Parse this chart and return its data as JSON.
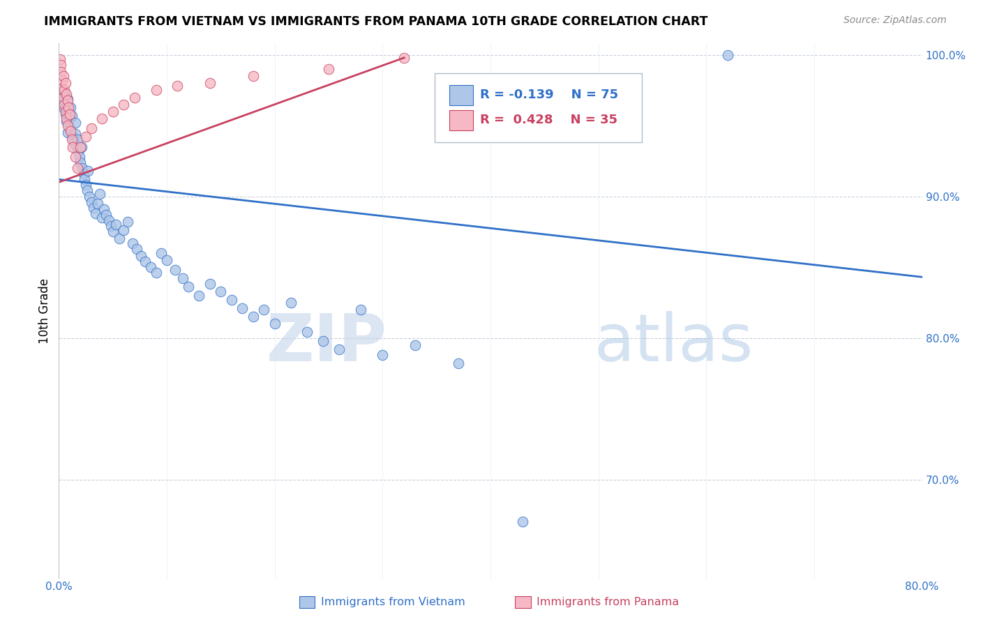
{
  "title": "IMMIGRANTS FROM VIETNAM VS IMMIGRANTS FROM PANAMA 10TH GRADE CORRELATION CHART",
  "source": "Source: ZipAtlas.com",
  "ylabel": "10th Grade",
  "xlim": [
    0.0,
    0.8
  ],
  "ylim": [
    0.63,
    1.008
  ],
  "xticks": [
    0.0,
    0.1,
    0.2,
    0.3,
    0.4,
    0.5,
    0.6,
    0.7,
    0.8
  ],
  "xticklabels": [
    "0.0%",
    "",
    "",
    "",
    "",
    "",
    "",
    "",
    "80.0%"
  ],
  "yticks": [
    0.7,
    0.8,
    0.9,
    1.0
  ],
  "yticklabels": [
    "70.0%",
    "80.0%",
    "90.0%",
    "100.0%"
  ],
  "legend_R_blue": "-0.139",
  "legend_N_blue": "75",
  "legend_R_pink": "0.428",
  "legend_N_pink": "35",
  "blue_color": "#aec6e8",
  "pink_color": "#f5b8c4",
  "blue_line_color": "#3070c8",
  "pink_line_color": "#c84060",
  "watermark_zip": "ZIP",
  "watermark_atlas": "atlas",
  "blue_trend_x": [
    0.0,
    0.8
  ],
  "blue_trend_y": [
    0.912,
    0.843
  ],
  "pink_trend_x": [
    0.0,
    0.32
  ],
  "pink_trend_y": [
    0.91,
    0.998
  ],
  "vietnam_scatter_x": [
    0.003,
    0.004,
    0.005,
    0.006,
    0.006,
    0.007,
    0.007,
    0.008,
    0.008,
    0.009,
    0.01,
    0.01,
    0.011,
    0.012,
    0.013,
    0.014,
    0.015,
    0.015,
    0.016,
    0.017,
    0.018,
    0.019,
    0.02,
    0.021,
    0.022,
    0.023,
    0.024,
    0.025,
    0.026,
    0.027,
    0.028,
    0.03,
    0.032,
    0.034,
    0.036,
    0.038,
    0.04,
    0.042,
    0.044,
    0.046,
    0.048,
    0.05,
    0.053,
    0.056,
    0.06,
    0.064,
    0.068,
    0.072,
    0.076,
    0.08,
    0.085,
    0.09,
    0.095,
    0.1,
    0.108,
    0.115,
    0.12,
    0.13,
    0.14,
    0.15,
    0.16,
    0.17,
    0.18,
    0.19,
    0.2,
    0.215,
    0.23,
    0.245,
    0.26,
    0.28,
    0.3,
    0.33,
    0.37,
    0.43,
    0.62
  ],
  "vietnam_scatter_y": [
    0.975,
    0.968,
    0.962,
    0.971,
    0.958,
    0.964,
    0.953,
    0.969,
    0.945,
    0.96,
    0.955,
    0.948,
    0.963,
    0.957,
    0.942,
    0.938,
    0.952,
    0.944,
    0.936,
    0.94,
    0.932,
    0.928,
    0.924,
    0.935,
    0.92,
    0.916,
    0.912,
    0.908,
    0.904,
    0.918,
    0.9,
    0.896,
    0.892,
    0.888,
    0.895,
    0.902,
    0.885,
    0.891,
    0.887,
    0.883,
    0.879,
    0.875,
    0.88,
    0.87,
    0.876,
    0.882,
    0.867,
    0.863,
    0.858,
    0.854,
    0.85,
    0.846,
    0.86,
    0.855,
    0.848,
    0.842,
    0.836,
    0.83,
    0.838,
    0.833,
    0.827,
    0.821,
    0.815,
    0.82,
    0.81,
    0.825,
    0.804,
    0.798,
    0.792,
    0.82,
    0.788,
    0.795,
    0.782,
    0.67,
    1.0
  ],
  "panama_scatter_x": [
    0.001,
    0.002,
    0.002,
    0.003,
    0.003,
    0.004,
    0.004,
    0.005,
    0.005,
    0.006,
    0.006,
    0.007,
    0.007,
    0.008,
    0.008,
    0.009,
    0.01,
    0.011,
    0.012,
    0.013,
    0.015,
    0.017,
    0.02,
    0.025,
    0.03,
    0.04,
    0.05,
    0.06,
    0.07,
    0.09,
    0.11,
    0.14,
    0.18,
    0.25,
    0.32
  ],
  "panama_scatter_y": [
    0.997,
    0.993,
    0.988,
    0.982,
    0.976,
    0.985,
    0.97,
    0.975,
    0.965,
    0.98,
    0.96,
    0.972,
    0.955,
    0.968,
    0.95,
    0.963,
    0.958,
    0.946,
    0.94,
    0.935,
    0.928,
    0.92,
    0.935,
    0.942,
    0.948,
    0.955,
    0.96,
    0.965,
    0.97,
    0.975,
    0.978,
    0.98,
    0.985,
    0.99,
    0.998
  ]
}
